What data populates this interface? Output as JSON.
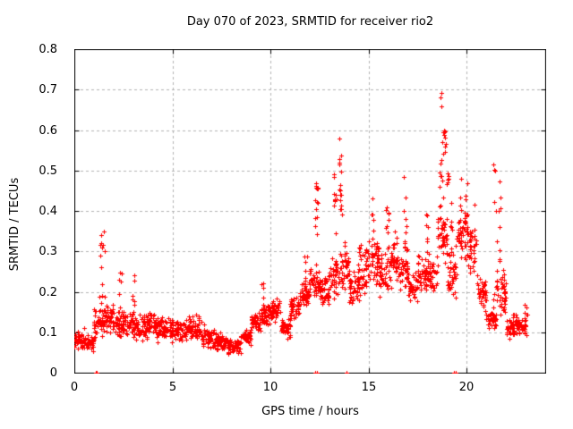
{
  "chart_data": {
    "type": "scatter",
    "title": "Day 070 of 2023, SRMTID for receiver rio2",
    "xlabel": "GPS time / hours",
    "ylabel": "SRMTID / TECUs",
    "xlim": [
      0,
      24
    ],
    "ylim": [
      0,
      0.8
    ],
    "xticks": [
      0,
      5,
      10,
      15,
      20
    ],
    "yticks": [
      0,
      0.1,
      0.2,
      0.3,
      0.4,
      0.5,
      0.6,
      0.7,
      0.8
    ],
    "xtick_labels": [
      "0",
      "5",
      "10",
      "15",
      "20"
    ],
    "ytick_labels": [
      "0",
      "0.1",
      "0.2",
      "0.3",
      "0.4",
      "0.5",
      "0.6",
      "0.7",
      "0.8"
    ],
    "grid": {
      "show": true,
      "color": "#b3b3b3",
      "style": "dashed",
      "on_xticks": [
        5,
        10,
        15,
        20
      ],
      "on_yticks": [
        0.1,
        0.2,
        0.3,
        0.4,
        0.5,
        0.6,
        0.7
      ]
    },
    "legend": {
      "show": false
    },
    "series_name": "SRMTID",
    "marker": {
      "shape": "plus",
      "color": "#ff0000",
      "size": 5
    },
    "axis_color": "#000000",
    "background_color": "#ffffff",
    "seed": 70,
    "band_envelope": {
      "description": "Dense 30s-sampled scatter; per 0.5h bin [start_hour, min_TECU, max_TECU] of the main band",
      "bin_hours": 0.5,
      "points_per_bin": 42,
      "bins": [
        [
          0.0,
          0.03,
          0.13
        ],
        [
          0.5,
          0.03,
          0.12
        ],
        [
          1.0,
          0.05,
          0.2
        ],
        [
          1.5,
          0.06,
          0.2
        ],
        [
          2.0,
          0.05,
          0.18
        ],
        [
          2.5,
          0.06,
          0.19
        ],
        [
          3.0,
          0.05,
          0.17
        ],
        [
          3.5,
          0.06,
          0.18
        ],
        [
          4.0,
          0.05,
          0.17
        ],
        [
          4.5,
          0.06,
          0.16
        ],
        [
          5.0,
          0.05,
          0.15
        ],
        [
          5.5,
          0.05,
          0.16
        ],
        [
          6.0,
          0.05,
          0.16
        ],
        [
          6.5,
          0.04,
          0.14
        ],
        [
          7.0,
          0.04,
          0.12
        ],
        [
          7.5,
          0.03,
          0.11
        ],
        [
          8.0,
          0.03,
          0.1
        ],
        [
          8.5,
          0.05,
          0.13
        ],
        [
          9.0,
          0.08,
          0.17
        ],
        [
          9.5,
          0.09,
          0.2
        ],
        [
          10.0,
          0.1,
          0.22
        ],
        [
          10.5,
          0.05,
          0.16
        ],
        [
          11.0,
          0.1,
          0.22
        ],
        [
          11.5,
          0.12,
          0.26
        ],
        [
          12.0,
          0.14,
          0.3
        ],
        [
          12.5,
          0.13,
          0.28
        ],
        [
          13.0,
          0.15,
          0.34
        ],
        [
          13.5,
          0.16,
          0.38
        ],
        [
          14.0,
          0.12,
          0.3
        ],
        [
          14.5,
          0.15,
          0.35
        ],
        [
          15.0,
          0.17,
          0.38
        ],
        [
          15.5,
          0.15,
          0.35
        ],
        [
          16.0,
          0.18,
          0.38
        ],
        [
          16.5,
          0.16,
          0.34
        ],
        [
          17.0,
          0.12,
          0.28
        ],
        [
          17.5,
          0.15,
          0.34
        ],
        [
          18.0,
          0.15,
          0.33
        ],
        [
          18.5,
          0.2,
          0.45
        ],
        [
          19.0,
          0.12,
          0.38
        ],
        [
          19.5,
          0.24,
          0.44
        ],
        [
          20.0,
          0.2,
          0.42
        ],
        [
          20.5,
          0.12,
          0.3
        ],
        [
          21.0,
          0.08,
          0.2
        ],
        [
          21.5,
          0.1,
          0.32
        ],
        [
          22.0,
          0.06,
          0.17
        ],
        [
          22.5,
          0.07,
          0.16
        ]
      ]
    },
    "spikes": {
      "description": "Narrow vertical burst columns [center_hour, half_width_h, min_TECU, max_TECU, n_points]",
      "columns": [
        [
          1.4,
          0.15,
          0.15,
          0.35,
          16
        ],
        [
          2.35,
          0.08,
          0.14,
          0.26,
          8
        ],
        [
          3.0,
          0.08,
          0.14,
          0.25,
          8
        ],
        [
          9.6,
          0.08,
          0.12,
          0.23,
          8
        ],
        [
          11.8,
          0.08,
          0.18,
          0.3,
          8
        ],
        [
          12.35,
          0.07,
          0.28,
          0.475,
          14
        ],
        [
          13.3,
          0.08,
          0.28,
          0.5,
          10
        ],
        [
          13.55,
          0.08,
          0.36,
          0.585,
          16
        ],
        [
          15.2,
          0.06,
          0.33,
          0.43,
          6
        ],
        [
          15.95,
          0.07,
          0.34,
          0.46,
          8
        ],
        [
          16.85,
          0.1,
          0.3,
          0.53,
          10
        ],
        [
          18.0,
          0.06,
          0.3,
          0.43,
          6
        ],
        [
          18.7,
          0.1,
          0.4,
          0.705,
          14
        ],
        [
          18.85,
          0.08,
          0.54,
          0.6,
          10
        ],
        [
          19.05,
          0.06,
          0.44,
          0.5,
          6
        ],
        [
          19.2,
          0.06,
          0.28,
          0.46,
          6
        ],
        [
          19.65,
          0.08,
          0.3,
          0.5,
          8
        ],
        [
          20.0,
          0.06,
          0.28,
          0.48,
          8
        ],
        [
          20.4,
          0.06,
          0.25,
          0.44,
          6
        ],
        [
          21.55,
          0.2,
          0.18,
          0.54,
          18
        ],
        [
          23.0,
          0.08,
          0.09,
          0.17,
          12
        ]
      ]
    },
    "zero_value_points_hours": [
      1.1,
      1.16,
      12.28,
      12.36,
      13.88,
      19.33,
      19.43
    ],
    "data_end_hour": 23.1
  }
}
